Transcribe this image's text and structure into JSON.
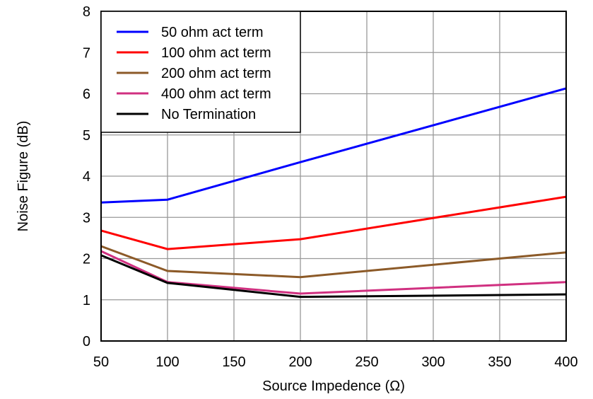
{
  "chart_data": {
    "type": "line",
    "title": "",
    "xlabel": "Source Impedence (Ω)",
    "ylabel": "Noise Figure (dB)",
    "xlim": [
      50,
      400
    ],
    "ylim": [
      0,
      8
    ],
    "xticks": [
      50,
      100,
      150,
      200,
      250,
      300,
      350,
      400
    ],
    "yticks": [
      0,
      1,
      2,
      3,
      4,
      5,
      6,
      7,
      8
    ],
    "grid": true,
    "legend_position": "top-left",
    "x": [
      50,
      100,
      200,
      400
    ],
    "series": [
      {
        "name": "50 ohm act term",
        "color": "#0000ff",
        "values": [
          3.36,
          3.43,
          4.34,
          6.13
        ]
      },
      {
        "name": "100 ohm act term",
        "color": "#ff0000",
        "values": [
          2.68,
          2.23,
          2.47,
          3.5
        ]
      },
      {
        "name": "200 ohm act term",
        "color": "#8c5a28",
        "values": [
          2.3,
          1.7,
          1.55,
          2.15
        ]
      },
      {
        "name": "400 ohm act term",
        "color": "#d03080",
        "values": [
          2.18,
          1.43,
          1.15,
          1.43
        ]
      },
      {
        "name": "No Termination",
        "color": "#000000",
        "values": [
          2.08,
          1.41,
          1.07,
          1.13
        ]
      }
    ]
  }
}
